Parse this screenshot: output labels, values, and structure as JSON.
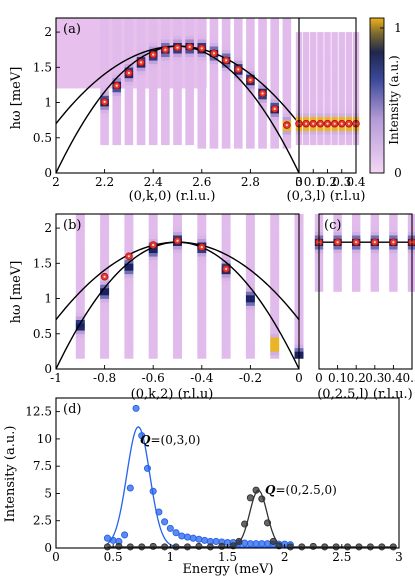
{
  "chart_data": [
    {
      "panel": "(a)",
      "type": "heatmap",
      "xlabel": "(0,k,0) (r.l.u.)",
      "ylabel": "hω [meV]",
      "xlim": [
        2,
        3
      ],
      "ylim": [
        0,
        2.2
      ],
      "xticks": [
        "2",
        "2.2",
        "2.4",
        "2.6",
        "2.8",
        "3"
      ],
      "yticks": [
        "0",
        "0.5",
        "1",
        "1.5",
        "2"
      ],
      "markers": {
        "x": [
          2.2,
          2.25,
          2.3,
          2.35,
          2.4,
          2.45,
          2.5,
          2.55,
          2.6,
          2.65,
          2.7,
          2.75,
          2.8,
          2.85,
          2.9,
          2.95
        ],
        "y": [
          1.01,
          1.24,
          1.42,
          1.57,
          1.68,
          1.75,
          1.78,
          1.79,
          1.77,
          1.7,
          1.6,
          1.47,
          1.32,
          1.13,
          0.91,
          0.68
        ]
      },
      "curves": [
        {
          "vertex_x": 2.5,
          "vertex_y": 1.8,
          "ends_y": 0.7
        },
        {
          "vertex_x": 2.5,
          "vertex_y": 1.8,
          "ends_y": 0.0
        }
      ]
    },
    {
      "panel": "(a) right",
      "type": "heatmap",
      "xlabel": "(0,3,l) (r.l.u)",
      "xlim": [
        0,
        0.4
      ],
      "xticks": [
        "0",
        "0.1",
        "0.2",
        "0.3",
        "0.4"
      ],
      "markers": {
        "x": [
          0.0,
          0.05,
          0.1,
          0.15,
          0.2,
          0.25,
          0.3,
          0.35,
          0.4
        ],
        "y": [
          0.7,
          0.7,
          0.7,
          0.7,
          0.7,
          0.7,
          0.7,
          0.7,
          0.7
        ]
      },
      "flat_line_y": 0.7
    },
    {
      "panel": "(b)",
      "type": "heatmap",
      "xlabel": "(0,k,2) (r.l.u)",
      "ylabel": "hω [meV]",
      "xlim": [
        -1,
        0
      ],
      "ylim": [
        0,
        2.2
      ],
      "xticks": [
        "-1",
        "-0.8",
        "-0.6",
        "-0.4",
        "-0.2",
        "0"
      ],
      "yticks": [
        "0",
        "0.5",
        "1",
        "1.5",
        "2"
      ],
      "markers": {
        "x": [
          -0.8,
          -0.7,
          -0.6,
          -0.5,
          -0.4,
          -0.3
        ],
        "y": [
          1.31,
          1.6,
          1.76,
          1.82,
          1.73,
          1.42
        ]
      },
      "curves": [
        {
          "vertex_x": -0.5,
          "vertex_y": 1.8,
          "ends_y": 0.7
        },
        {
          "vertex_x": -0.5,
          "vertex_y": 1.8,
          "ends_y": 0.0
        }
      ]
    },
    {
      "panel": "(c)",
      "type": "heatmap",
      "xlabel": "(0,2.5,l) (r.l.u.)",
      "xlim": [
        0,
        0.5
      ],
      "xticks": [
        "0",
        "0.1",
        "0.2",
        "0.3",
        "0.4",
        "0.5"
      ],
      "markers": {
        "x": [
          0.0,
          0.1,
          0.2,
          0.3,
          0.4,
          0.5
        ],
        "y": [
          1.8,
          1.8,
          1.8,
          1.8,
          1.8,
          1.8
        ]
      },
      "flat_line_y": 1.8
    },
    {
      "panel": "(d)",
      "type": "line",
      "xlabel": "Energy (meV)",
      "ylabel": "Intensity (a.u.)",
      "xlim": [
        0,
        3
      ],
      "ylim": [
        0,
        13.75
      ],
      "xticks": [
        "0",
        "0.5",
        "1",
        "1.5",
        "2",
        "2.5",
        "3"
      ],
      "yticks": [
        "0",
        "2.5",
        "5",
        "7.5",
        "10",
        "12.5"
      ],
      "series": [
        {
          "name": "Q=(0,3,0)",
          "color": "#2563eb",
          "x": [
            0.45,
            0.5,
            0.55,
            0.6,
            0.65,
            0.7,
            0.75,
            0.8,
            0.85,
            0.9,
            0.95,
            1.0,
            1.05,
            1.1,
            1.15,
            1.2,
            1.25,
            1.3,
            1.35,
            1.4,
            1.45,
            1.5,
            1.55,
            1.6,
            1.65,
            1.7,
            1.75,
            1.8,
            1.85,
            1.9,
            1.95,
            2.0,
            2.05
          ],
          "y": [
            0.9,
            0.7,
            0.6,
            1.2,
            5.5,
            12.8,
            10.3,
            7.3,
            5.2,
            3.3,
            2.4,
            1.8,
            1.4,
            1.1,
            1.0,
            0.9,
            0.8,
            0.7,
            0.6,
            0.6,
            0.55,
            0.5,
            0.5,
            0.45,
            0.45,
            0.4,
            0.4,
            0.4,
            0.4,
            0.35,
            0.35,
            0.35,
            0.3
          ],
          "fit": {
            "center": 0.72,
            "amplitude": 11.0,
            "width": 0.1
          }
        },
        {
          "name": "Q=(0,2.5,0)",
          "color": "#333333",
          "x": [
            0.45,
            0.55,
            0.65,
            0.75,
            0.85,
            0.95,
            1.05,
            1.15,
            1.25,
            1.35,
            1.45,
            1.55,
            1.6,
            1.65,
            1.7,
            1.75,
            1.8,
            1.85,
            1.9,
            1.95,
            2.05,
            2.15,
            2.25,
            2.35,
            2.45,
            2.55,
            2.65,
            2.75,
            2.85,
            2.95
          ],
          "y": [
            0.1,
            0.15,
            0.1,
            0.1,
            0.15,
            0.1,
            0.1,
            0.1,
            0.15,
            0.1,
            0.15,
            0.2,
            0.6,
            2.2,
            4.6,
            5.3,
            4.5,
            2.3,
            0.6,
            0.2,
            0.1,
            0.1,
            0.15,
            0.1,
            0.1,
            0.1,
            0.1,
            0.1,
            0.1,
            0.1
          ],
          "fit": {
            "center": 1.77,
            "amplitude": 5.2,
            "width": 0.075
          }
        }
      ],
      "annotations": [
        "Q=(0,3,0)",
        "Q=(0,2.5,0)"
      ]
    }
  ],
  "colorbar": {
    "label": "Intensity (a.u.)",
    "ticks": [
      "0",
      "1"
    ]
  },
  "colors": {
    "marker_fill": "#e23b2e",
    "marker_edge": "#b01010",
    "colormap": [
      "#e8c0ee",
      "#3a3e8c",
      "#1a2060",
      "#f2b218"
    ]
  },
  "text": {
    "panel_a": "(a)",
    "panel_b": "(b)",
    "panel_c": "(c)",
    "panel_d": "(d)",
    "y_label_top": "hω [meV]",
    "y_label_mid": "hω [meV]",
    "y_label_bottom": "Intensity (a.u.)",
    "x_label_a": "(0,k,0) (r.l.u.)",
    "x_label_a2": "(0,3,l) (r.l.u)",
    "x_label_b": "(0,k,2) (r.l.u)",
    "x_label_c": "(0,2.5,l) (r.l.u.)",
    "x_label_d": "Energy (meV)",
    "colorbar_label": "Intensity (a.u.)",
    "colorbar_max": "1",
    "colorbar_min": "0",
    "legend_q1_bold": "Q",
    "legend_q1_rest": "=(0,3,0)",
    "legend_q2_bold": "Q",
    "legend_q2_rest": "=(0,2.5,0)"
  }
}
